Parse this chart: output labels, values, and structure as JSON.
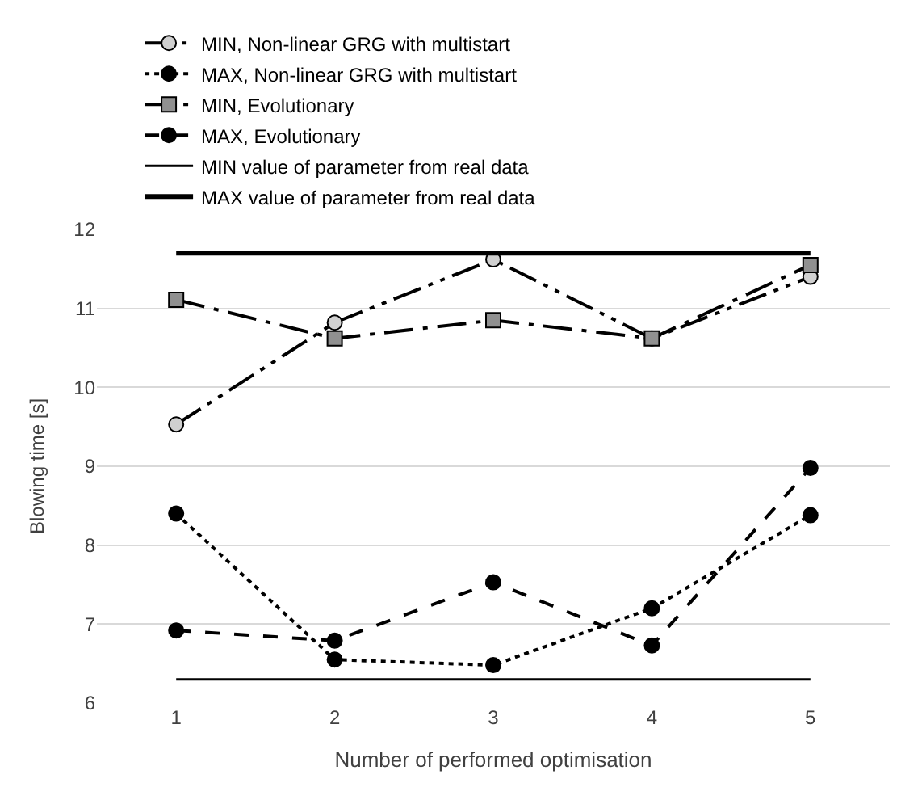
{
  "chart_data": {
    "type": "line",
    "xlabel": "Number of performed optimisation",
    "ylabel": "Blowing time [s]",
    "categories": [
      "1",
      "2",
      "3",
      "4",
      "5"
    ],
    "ylim": [
      6,
      12
    ],
    "yticks": [
      6,
      7,
      8,
      9,
      10,
      11,
      12
    ],
    "grid": "y",
    "legend": "top",
    "series": [
      {
        "name": "MIN, Non-linear GRG with multistart",
        "color": "#d0d0d0",
        "marker": "circle",
        "line_style": "dashdotdot",
        "values": [
          9.53,
          10.82,
          11.62,
          10.62,
          11.4
        ]
      },
      {
        "name": "MAX, Non-linear GRG with multistart",
        "color": "#000000",
        "marker": "circle",
        "line_style": "dotted",
        "values": [
          8.4,
          6.55,
          6.48,
          7.2,
          8.38
        ]
      },
      {
        "name": "MIN, Evolutionary",
        "color": "#909090",
        "marker": "square",
        "line_style": "dashdot",
        "values": [
          11.11,
          10.62,
          10.85,
          10.62,
          11.55
        ]
      },
      {
        "name": "MAX, Evolutionary",
        "color": "#000000",
        "marker": "circle",
        "line_style": "dashed",
        "values": [
          6.92,
          6.79,
          7.53,
          6.73,
          8.98
        ]
      },
      {
        "name": "MIN value of parameter from real data",
        "color": "#000000",
        "marker": "none",
        "line_style": "solid",
        "values": [
          6.3,
          6.3,
          6.3,
          6.3,
          6.3
        ]
      },
      {
        "name": "MAX value of parameter from real data",
        "color": "#000000",
        "marker": "none",
        "line_style": "solid",
        "values": [
          11.7,
          11.7,
          11.7,
          11.7,
          11.7
        ]
      }
    ]
  }
}
